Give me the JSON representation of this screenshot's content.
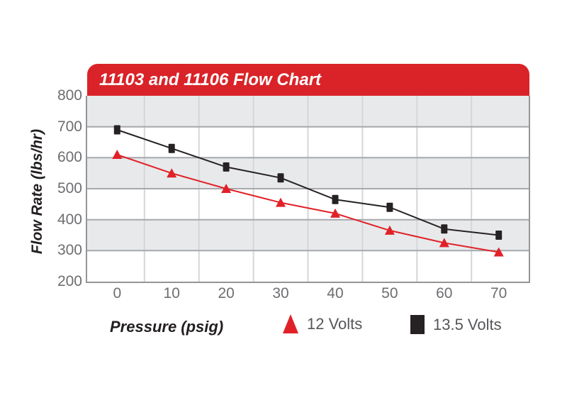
{
  "title": "11103 and 11106 Flow Chart",
  "colors": {
    "banner_red": "#d92328",
    "series_red": "#e02228",
    "series_black": "#262223",
    "band_gray": "#e8e9eb",
    "h_gridline": "#a6a8ab",
    "v_gridline": "#d4d6d8",
    "plot_border": "#939598",
    "tick_text": "#6d6e71",
    "legend_text": "#55565a",
    "axis_label_text": "#231f20",
    "title_text": "#ffffff"
  },
  "chart_data": {
    "type": "line",
    "title": "11103 and 11106 Flow Chart",
    "xlabel": "Pressure (psig)",
    "ylabel": "Flow Rate (lbs/hr)",
    "x": [
      0,
      10,
      20,
      30,
      40,
      50,
      60,
      70
    ],
    "series": [
      {
        "name": "12 Volts",
        "marker": "triangle",
        "color_key": "series_red",
        "values": [
          610,
          550,
          500,
          455,
          420,
          365,
          325,
          295
        ]
      },
      {
        "name": "13.5 Volts",
        "marker": "square",
        "color_key": "series_black",
        "values": [
          690,
          630,
          570,
          535,
          465,
          440,
          370,
          350
        ]
      }
    ],
    "xticks": [
      0,
      10,
      20,
      30,
      40,
      50,
      60,
      70
    ],
    "yticks": [
      200,
      300,
      400,
      500,
      600,
      700,
      800
    ],
    "xlim": [
      -5.5,
      75.5
    ],
    "ylim": [
      200,
      800
    ],
    "grid": {
      "horizontal_lines": [
        300,
        400,
        500,
        600,
        700
      ],
      "vertical_lines": [
        5,
        15,
        25,
        35,
        45,
        55,
        65
      ],
      "shaded_bands": [
        [
          700,
          800
        ],
        [
          500,
          600
        ],
        [
          300,
          400
        ]
      ]
    },
    "legend_position": "bottom"
  },
  "legend": {
    "items": [
      {
        "label": "12 Volts",
        "marker": "triangle"
      },
      {
        "label": "13.5 Volts",
        "marker": "square"
      }
    ]
  }
}
